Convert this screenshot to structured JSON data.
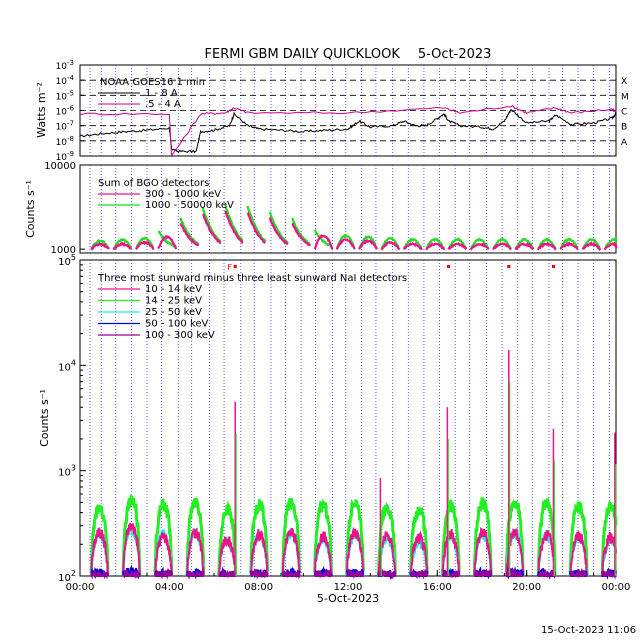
{
  "title": "FERMI GBM DAILY QUICKLOOK",
  "date": "5-Oct-2023",
  "footer_timestamp": "15-Oct-2023 11:06",
  "colors": {
    "xray_long": "#000000",
    "xray_short": "#cc0088",
    "bgo_low": "#ee1188",
    "bgo_high": "#22dd22",
    "nai_10_14": "#ee1188",
    "nai_14_25": "#22ee22",
    "nai_25_50": "#22eeee",
    "nai_50_100": "#0000ee",
    "nai_100_300": "#990099",
    "marker": "#ee0000",
    "night_line": "#3333ff"
  },
  "chart_data": [
    {
      "type": "line",
      "panel": "goes",
      "ylabel": "Watts m⁻²",
      "yscale": "log",
      "ylim": [
        1e-09,
        0.001
      ],
      "ytick_labels": [
        "10⁻³",
        "10⁻⁴",
        "10⁻⁵",
        "10⁻⁶",
        "10⁻⁷",
        "10⁻⁸",
        "10⁻⁹"
      ],
      "flare_class_labels": [
        "X",
        "M",
        "C",
        "B",
        "A"
      ],
      "legend": {
        "heading": "NOAA GOES16 1 min",
        "items": [
          "1 - 8 A",
          ".5 - 4 A"
        ]
      },
      "series": [
        {
          "name": "1 - 8 A",
          "x": [
            0,
            1,
            2,
            3,
            4,
            4.1,
            4.4,
            5.2,
            5.4,
            6,
            6.7,
            6.9,
            7.5,
            8,
            9,
            10,
            11,
            12,
            12.5,
            13,
            14,
            14.5,
            15,
            15.5,
            16,
            16.3,
            16.5,
            17,
            18,
            18.5,
            19,
            19.3,
            20,
            21,
            21.3,
            22,
            23,
            23.8,
            24
          ],
          "y": [
            2e-08,
            3e-08,
            4e-08,
            5e-08,
            7e-08,
            3e-09,
            2e-09,
            2e-09,
            4e-08,
            5e-08,
            1e-07,
            6e-07,
            1e-07,
            6e-08,
            5e-08,
            4e-08,
            5e-08,
            6e-08,
            2e-07,
            8e-08,
            1e-07,
            2e-07,
            1e-07,
            1e-07,
            3e-07,
            6e-07,
            2e-07,
            1e-07,
            8e-08,
            6e-08,
            2e-07,
            1.2e-06,
            1.5e-07,
            2e-07,
            5e-07,
            1.2e-07,
            1.5e-07,
            3e-07,
            6e-07
          ]
        },
        {
          "name": ".5 - 4 A",
          "x": [
            0,
            4,
            4.1,
            5.4,
            6.5,
            6.9,
            7.5,
            12,
            16.3,
            17,
            19.3,
            20,
            21.3,
            22,
            23.8,
            24
          ],
          "y": [
            6e-07,
            6e-07,
            1e-09,
            6e-07,
            7e-07,
            1.5e-06,
            7e-07,
            7e-07,
            1.5e-06,
            7e-07,
            2e-06,
            7e-07,
            1.5e-06,
            7e-07,
            1.2e-06,
            8e-07
          ]
        }
      ]
    },
    {
      "type": "line",
      "panel": "bgo",
      "ylabel": "Counts s⁻¹",
      "yscale": "log",
      "ylim": [
        900,
        10000
      ],
      "ytick_labels": [
        "10000",
        "1000"
      ],
      "legend": {
        "heading": "Sum of BGO detectors",
        "items": [
          "300 - 1000 keV",
          "1000 - 50000 keV"
        ]
      },
      "series": [
        {
          "name": "300 - 1000 keV",
          "orbit_peaks": [
            1150,
            1150,
            1200,
            1400,
            2000,
            2600,
            2800,
            2700,
            2300,
            2000,
            1450,
            1300,
            1250,
            1200,
            1150,
            1150,
            1150,
            1150,
            1150,
            1150,
            1150,
            1150,
            1150,
            1150
          ]
        },
        {
          "name": "1000 - 50000 keV",
          "orbit_peaks": [
            1250,
            1300,
            1350,
            1600,
            2300,
            3000,
            3300,
            3200,
            2700,
            2300,
            1650,
            1450,
            1400,
            1350,
            1300,
            1300,
            1300,
            1300,
            1300,
            1300,
            1300,
            1300,
            1300,
            1300
          ]
        }
      ]
    },
    {
      "type": "line",
      "panel": "nai",
      "ylabel": "Counts s⁻¹",
      "yscale": "log",
      "ylim": [
        100,
        100000
      ],
      "ytick_labels": [
        "10⁵",
        "10⁴",
        "10³",
        "10²"
      ],
      "xlabel": "5-Oct-2023",
      "xlim": [
        0,
        24
      ],
      "xtick_labels": [
        "00:00",
        "04:00",
        "08:00",
        "12:00",
        "16:00",
        "20:00",
        "00:00"
      ],
      "legend": {
        "heading": "Three most sunward minus three least sunward NaI detectors",
        "items": [
          "10 - 14 keV",
          "14 - 25 keV",
          "25 - 50 keV",
          "50 - 100 keV",
          "100 - 300 keV"
        ]
      },
      "series": [
        {
          "name": "10 - 14 keV",
          "orbit_peaks": [
            260,
            300,
            240,
            260,
            220,
            250,
            260,
            240,
            260,
            240,
            230,
            250,
            260,
            260,
            250,
            240,
            230
          ]
        },
        {
          "name": "14 - 25 keV",
          "orbit_peaks": [
            450,
            520,
            480,
            500,
            430,
            470,
            500,
            470,
            480,
            450,
            430,
            470,
            490,
            500,
            490,
            480,
            450
          ]
        },
        {
          "name": "25 - 50 keV",
          "orbit_peaks": [
            250,
            280,
            250,
            260,
            220,
            240,
            260,
            230,
            250,
            230,
            210,
            240,
            250,
            260,
            250,
            240,
            220
          ]
        },
        {
          "name": "50 - 100 keV",
          "orbit_peaks": [
            105,
            108,
            104,
            105,
            102,
            104,
            105,
            104,
            104,
            103,
            102,
            104,
            104,
            105,
            104,
            104,
            103
          ]
        },
        {
          "name": "100 - 300 keV",
          "orbit_peaks": [
            101,
            102,
            101,
            101,
            101,
            101,
            101,
            101,
            101,
            101,
            101,
            101,
            101,
            101,
            101,
            101,
            101
          ]
        }
      ],
      "spikes": [
        {
          "time": 6.95,
          "value": 4500
        },
        {
          "time": 13.45,
          "value": 850
        },
        {
          "time": 16.45,
          "value": 4000
        },
        {
          "time": 19.2,
          "value": 14000
        },
        {
          "time": 21.2,
          "value": 2500
        },
        {
          "time": 23.95,
          "value": 2300
        }
      ],
      "markers": [
        {
          "time": 6.7,
          "label": "F"
        },
        {
          "time": 6.95,
          "label": ""
        },
        {
          "time": 16.5,
          "label": ""
        },
        {
          "time": 19.2,
          "label": ""
        },
        {
          "time": 21.2,
          "label": ""
        }
      ]
    }
  ],
  "night_boundaries": [
    0.45,
    0.95,
    1.6,
    2.3,
    3.0,
    3.65,
    4.4,
    5.0,
    5.8,
    6.45,
    7.2,
    7.8,
    8.55,
    9.2,
    9.9,
    10.55,
    11.3,
    11.9,
    12.6,
    13.25,
    14.0,
    14.7,
    15.4,
    16.1,
    16.8,
    17.45,
    18.2,
    18.9,
    19.6,
    20.25,
    21.0,
    21.6,
    22.3,
    23.0,
    23.7
  ]
}
